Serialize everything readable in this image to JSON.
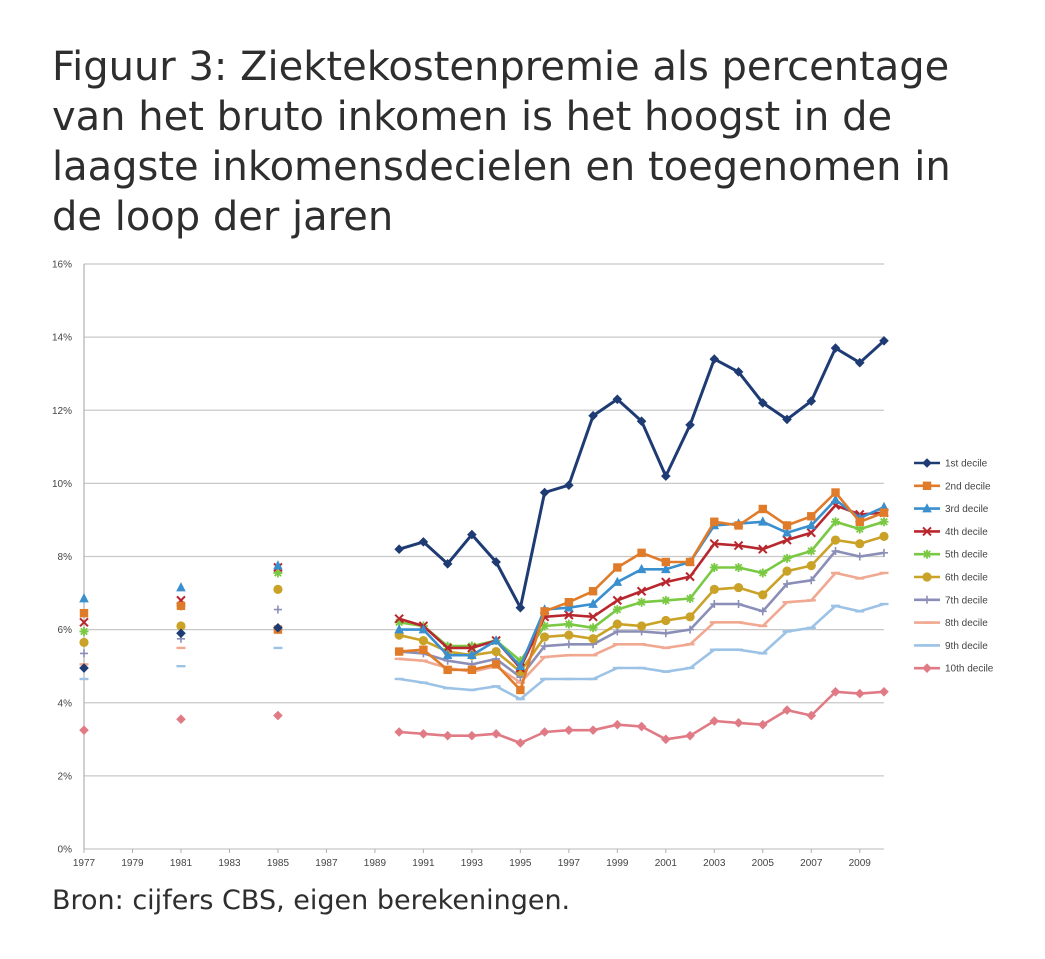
{
  "figure": {
    "title": "Figuur 3: Ziektekostenpremie als percentage van het bruto inkomen is het hoogst in de laagste inkomensdecielen en toegenomen in de loop der jaren",
    "source": "Bron: cijfers CBS, eigen berekeningen."
  },
  "chart_data": {
    "type": "line",
    "title": "Figuur 3: Ziektekostenpremie als percentage van het bruto inkomen is het hoogst in de laagste inkomensdecielen en toegenomen in de loop der jaren",
    "xlabel": "",
    "ylabel": "",
    "xlim": [
      1977,
      2010
    ],
    "ylim": [
      0,
      16
    ],
    "y_unit": "%",
    "grid": true,
    "legend_position": "right",
    "x_ticks": [
      "1977",
      "1979",
      "1981",
      "1983",
      "1985",
      "1987",
      "1989",
      "1991",
      "1993",
      "1995",
      "1997",
      "1999",
      "2001",
      "2003",
      "2005",
      "2007",
      "2009"
    ],
    "y_ticks": [
      "0%",
      "2%",
      "4%",
      "6%",
      "8%",
      "10%",
      "12%",
      "14%",
      "16%"
    ],
    "x": [
      1977,
      1981,
      1985,
      1990,
      1991,
      1992,
      1993,
      1994,
      1995,
      1996,
      1997,
      1998,
      1999,
      2000,
      2001,
      2002,
      2003,
      2004,
      2005,
      2006,
      2007,
      2008,
      2009,
      2010
    ],
    "series": [
      {
        "name": "1st decile",
        "color": "#1f3b73",
        "marker": "diamond",
        "values": [
          4.95,
          5.9,
          6.05,
          8.2,
          8.4,
          7.8,
          8.6,
          7.85,
          6.6,
          9.75,
          9.95,
          11.85,
          12.3,
          11.7,
          10.2,
          11.6,
          13.4,
          13.05,
          12.2,
          11.75,
          12.25,
          13.7,
          13.3,
          13.9
        ]
      },
      {
        "name": "2nd decile",
        "color": "#e07b2a",
        "marker": "square",
        "values": [
          6.45,
          6.65,
          6.0,
          5.4,
          5.45,
          4.9,
          4.9,
          5.05,
          4.35,
          6.5,
          6.75,
          7.05,
          7.7,
          8.1,
          7.85,
          7.85,
          8.95,
          8.85,
          9.3,
          8.85,
          9.1,
          9.75,
          8.95,
          9.2
        ]
      },
      {
        "name": "3rd decile",
        "color": "#3a8fcf",
        "marker": "triangle",
        "values": [
          6.85,
          7.15,
          7.75,
          6.0,
          6.0,
          5.3,
          5.3,
          5.7,
          5.0,
          6.55,
          6.6,
          6.7,
          7.3,
          7.65,
          7.65,
          7.85,
          8.85,
          8.9,
          8.95,
          8.65,
          8.85,
          9.55,
          9.05,
          9.35
        ]
      },
      {
        "name": "4th decile",
        "color": "#b8272e",
        "marker": "x",
        "values": [
          6.2,
          6.8,
          7.7,
          6.3,
          6.1,
          5.5,
          5.5,
          5.7,
          4.95,
          6.35,
          6.4,
          6.35,
          6.8,
          7.05,
          7.3,
          7.45,
          8.35,
          8.3,
          8.2,
          8.45,
          8.65,
          9.4,
          9.15,
          9.2
        ]
      },
      {
        "name": "5th decile",
        "color": "#7ac943",
        "marker": "star",
        "values": [
          5.95,
          6.65,
          7.55,
          6.2,
          6.1,
          5.55,
          5.55,
          5.7,
          5.15,
          6.1,
          6.15,
          6.05,
          6.55,
          6.75,
          6.8,
          6.85,
          7.7,
          7.7,
          7.55,
          7.95,
          8.15,
          8.95,
          8.75,
          8.95
        ]
      },
      {
        "name": "6th decile",
        "color": "#c9a227",
        "marker": "circle",
        "values": [
          5.65,
          6.1,
          7.1,
          5.85,
          5.7,
          5.4,
          5.3,
          5.4,
          4.85,
          5.8,
          5.85,
          5.75,
          6.15,
          6.1,
          6.25,
          6.35,
          7.1,
          7.15,
          6.95,
          7.6,
          7.75,
          8.45,
          8.35,
          8.55
        ]
      },
      {
        "name": "7th decile",
        "color": "#8b8fb8",
        "marker": "plus",
        "values": [
          5.35,
          5.75,
          6.55,
          5.4,
          5.35,
          5.15,
          5.05,
          5.2,
          4.7,
          5.55,
          5.6,
          5.6,
          5.95,
          5.95,
          5.9,
          6.0,
          6.7,
          6.7,
          6.5,
          7.25,
          7.35,
          8.15,
          8.0,
          8.1
        ]
      },
      {
        "name": "8th decile",
        "color": "#f0a890",
        "marker": "dash",
        "values": [
          5.05,
          5.5,
          6.0,
          5.2,
          5.15,
          4.95,
          4.85,
          5.0,
          4.55,
          5.25,
          5.3,
          5.3,
          5.6,
          5.6,
          5.5,
          5.6,
          6.2,
          6.2,
          6.1,
          6.75,
          6.8,
          7.55,
          7.4,
          7.55
        ]
      },
      {
        "name": "9th decile",
        "color": "#9cc3e6",
        "marker": "dash",
        "values": [
          4.65,
          5.0,
          5.5,
          4.65,
          4.55,
          4.4,
          4.35,
          4.45,
          4.1,
          4.65,
          4.65,
          4.65,
          4.95,
          4.95,
          4.85,
          4.95,
          5.45,
          5.45,
          5.35,
          5.95,
          6.05,
          6.65,
          6.5,
          6.7
        ]
      },
      {
        "name": "10th decile",
        "color": "#e07b86",
        "marker": "diamond",
        "values": [
          3.25,
          3.55,
          3.65,
          3.2,
          3.15,
          3.1,
          3.1,
          3.15,
          2.9,
          3.2,
          3.25,
          3.25,
          3.4,
          3.35,
          3.0,
          3.1,
          3.5,
          3.45,
          3.4,
          3.8,
          3.65,
          4.3,
          4.25,
          4.3
        ]
      }
    ]
  }
}
